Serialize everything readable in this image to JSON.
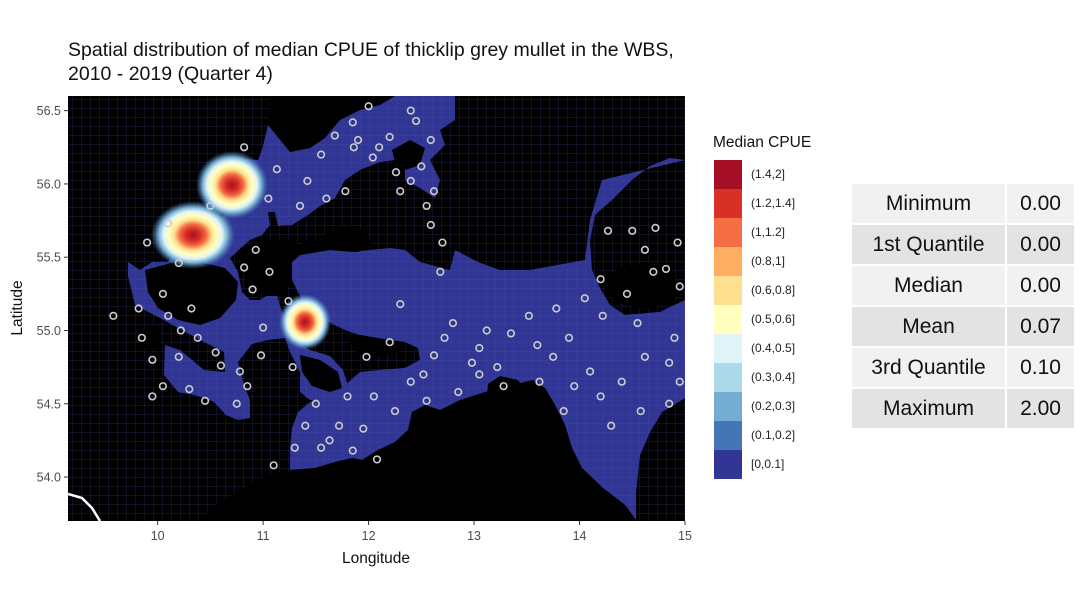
{
  "title": {
    "line1": "Spatial distribution of median CPUE of thicklip grey mullet in the WBS,",
    "line2": "2010 - 2019 (Quarter 4)"
  },
  "chart_data": {
    "type": "heatmap",
    "xlabel": "Longitude",
    "ylabel": "Latitude",
    "xlim": [
      9.15,
      15.0
    ],
    "ylim": [
      53.7,
      56.6
    ],
    "xticks": [
      10,
      11,
      12,
      13,
      14,
      15
    ],
    "yticks": [
      54.0,
      54.5,
      55.0,
      55.5,
      56.0,
      56.5
    ],
    "ytick_labels": [
      "54.0",
      "54.5",
      "55.0",
      "55.5",
      "56.0",
      "56.5"
    ],
    "grid": false,
    "legend": {
      "title": "Median CPUE",
      "placement": "right",
      "entries": [
        {
          "label": "(1.4,2]",
          "color": "#a50f26"
        },
        {
          "label": "(1.2,1.4]",
          "color": "#d73027"
        },
        {
          "label": "(1,1.2]",
          "color": "#f46d43"
        },
        {
          "label": "(0.8,1]",
          "color": "#fdae61"
        },
        {
          "label": "(0.6,0.8]",
          "color": "#fee090"
        },
        {
          "label": "(0.5,0.6]",
          "color": "#ffffbf"
        },
        {
          "label": "(0.4,0.5]",
          "color": "#e0f3f8"
        },
        {
          "label": "(0.3,0.4]",
          "color": "#abd9e9"
        },
        {
          "label": "(0.2,0.3]",
          "color": "#74add1"
        },
        {
          "label": "(0.1,0.2]",
          "color": "#4575b4"
        },
        {
          "label": "[0,0.1]",
          "color": "#313695"
        }
      ]
    },
    "hotspots": [
      {
        "lon": 10.35,
        "lat": 55.65,
        "value": 1.6
      },
      {
        "lon": 10.7,
        "lat": 55.97,
        "value": 1.5
      },
      {
        "lon": 11.4,
        "lat": 55.06,
        "value": 1.4
      }
    ],
    "land_color": "#000000",
    "sea_color": "#313695",
    "point_color": "#cccccc",
    "observation_points": [
      [
        11.05,
        55.9
      ],
      [
        10.82,
        56.25
      ],
      [
        11.13,
        56.1
      ],
      [
        11.42,
        56.02
      ],
      [
        11.55,
        56.2
      ],
      [
        11.86,
        56.25
      ],
      [
        11.78,
        55.95
      ],
      [
        12.04,
        56.18
      ],
      [
        11.85,
        56.42
      ],
      [
        12.0,
        56.53
      ],
      [
        12.2,
        56.32
      ],
      [
        11.9,
        56.3
      ],
      [
        12.26,
        56.08
      ],
      [
        12.5,
        56.12
      ],
      [
        12.45,
        56.43
      ],
      [
        12.4,
        56.02
      ],
      [
        12.62,
        55.95
      ],
      [
        12.59,
        55.72
      ],
      [
        12.7,
        55.6
      ],
      [
        12.68,
        55.4
      ],
      [
        12.59,
        56.3
      ],
      [
        10.1,
        55.73
      ],
      [
        9.9,
        55.6
      ],
      [
        10.5,
        55.85
      ],
      [
        10.2,
        55.46
      ],
      [
        10.05,
        55.25
      ],
      [
        10.22,
        55.0
      ],
      [
        10.38,
        54.95
      ],
      [
        9.82,
        55.15
      ],
      [
        9.58,
        55.1
      ],
      [
        9.95,
        54.8
      ],
      [
        10.2,
        54.82
      ],
      [
        10.05,
        54.62
      ],
      [
        10.3,
        54.6
      ],
      [
        9.95,
        54.55
      ],
      [
        10.6,
        54.76
      ],
      [
        10.9,
        55.28
      ],
      [
        11.0,
        55.02
      ],
      [
        10.98,
        54.83
      ],
      [
        10.78,
        54.72
      ],
      [
        10.75,
        54.5
      ],
      [
        11.06,
        55.4
      ],
      [
        11.24,
        55.2
      ],
      [
        10.93,
        55.55
      ],
      [
        10.82,
        55.43
      ],
      [
        11.28,
        54.75
      ],
      [
        11.5,
        54.5
      ],
      [
        11.8,
        54.55
      ],
      [
        11.4,
        54.35
      ],
      [
        11.63,
        54.25
      ],
      [
        11.3,
        54.2
      ],
      [
        11.1,
        54.08
      ],
      [
        11.85,
        54.18
      ],
      [
        11.95,
        54.33
      ],
      [
        12.05,
        54.55
      ],
      [
        12.4,
        54.65
      ],
      [
        12.25,
        54.45
      ],
      [
        12.62,
        54.83
      ],
      [
        12.55,
        54.52
      ],
      [
        12.85,
        54.58
      ],
      [
        12.8,
        55.05
      ],
      [
        12.3,
        55.18
      ],
      [
        13.05,
        54.88
      ],
      [
        13.22,
        54.75
      ],
      [
        13.35,
        54.98
      ],
      [
        13.6,
        54.9
      ],
      [
        13.52,
        55.1
      ],
      [
        13.78,
        55.15
      ],
      [
        13.9,
        54.95
      ],
      [
        14.05,
        55.22
      ],
      [
        14.22,
        55.1
      ],
      [
        13.75,
        54.82
      ],
      [
        13.95,
        54.62
      ],
      [
        13.85,
        54.45
      ],
      [
        14.2,
        54.55
      ],
      [
        14.1,
        54.72
      ],
      [
        14.4,
        54.65
      ],
      [
        14.58,
        54.45
      ],
      [
        14.62,
        54.82
      ],
      [
        14.85,
        54.78
      ],
      [
        14.95,
        54.65
      ],
      [
        14.85,
        54.5
      ],
      [
        14.9,
        54.95
      ],
      [
        14.55,
        55.05
      ],
      [
        14.2,
        55.35
      ],
      [
        14.45,
        55.25
      ],
      [
        14.62,
        55.55
      ],
      [
        14.82,
        55.42
      ],
      [
        14.93,
        55.6
      ],
      [
        14.72,
        55.7
      ],
      [
        14.5,
        55.68
      ],
      [
        14.27,
        55.68
      ],
      [
        14.7,
        55.4
      ],
      [
        14.95,
        55.3
      ],
      [
        14.3,
        54.35
      ],
      [
        13.62,
        54.65
      ],
      [
        13.05,
        54.7
      ],
      [
        13.28,
        54.62
      ],
      [
        13.12,
        55.0
      ],
      [
        12.98,
        54.78
      ],
      [
        12.72,
        54.95
      ],
      [
        12.52,
        54.7
      ],
      [
        12.2,
        54.92
      ],
      [
        11.98,
        54.82
      ],
      [
        11.72,
        54.35
      ],
      [
        11.55,
        54.2
      ],
      [
        12.08,
        54.12
      ],
      [
        10.45,
        54.52
      ],
      [
        10.55,
        54.85
      ],
      [
        10.85,
        54.62
      ],
      [
        9.85,
        54.95
      ],
      [
        10.1,
        55.1
      ],
      [
        10.32,
        55.15
      ],
      [
        11.6,
        55.9
      ],
      [
        11.35,
        55.85
      ],
      [
        12.3,
        55.95
      ],
      [
        12.55,
        55.85
      ],
      [
        12.1,
        56.25
      ],
      [
        11.68,
        56.33
      ],
      [
        12.4,
        56.5
      ]
    ]
  },
  "stats_table": [
    {
      "label": "Minimum",
      "value": "0.00"
    },
    {
      "label": "1st Quantile",
      "value": "0.00"
    },
    {
      "label": "Median",
      "value": "0.00"
    },
    {
      "label": "Mean",
      "value": "0.07"
    },
    {
      "label": "3rd Quantile",
      "value": "0.10"
    },
    {
      "label": "Maximum",
      "value": "2.00"
    }
  ]
}
